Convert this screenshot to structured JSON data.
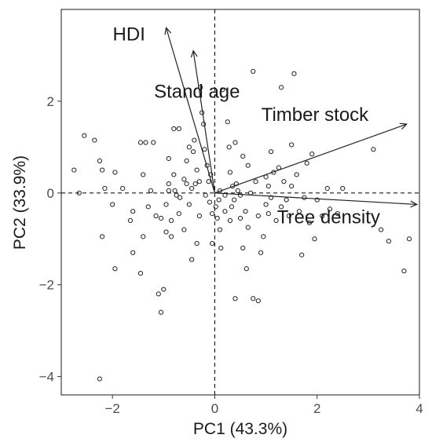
{
  "chart_data": {
    "type": "biplot",
    "xlabel": "PC1 (43.3%)",
    "ylabel": "PC2 (33.9%)",
    "xlim": [
      -3.0,
      4.0
    ],
    "ylim": [
      -4.4,
      4.0
    ],
    "xticks": [
      -2,
      0,
      2,
      4
    ],
    "yticks": [
      -4,
      -2,
      0,
      2
    ],
    "reference_lines": {
      "x": 0,
      "y": 0,
      "style": "dashed"
    },
    "grid": false,
    "loadings": [
      {
        "name": "HDI",
        "x": -0.95,
        "y": 3.6
      },
      {
        "name": "Stand age",
        "x": -0.42,
        "y": 3.1
      },
      {
        "name": "Timber stock",
        "x": 3.75,
        "y": 1.5
      },
      {
        "name": "Tree density",
        "x": 3.95,
        "y": -0.25
      }
    ],
    "points": [
      [
        -2.75,
        0.5
      ],
      [
        -2.65,
        0.0
      ],
      [
        -2.55,
        1.25
      ],
      [
        -2.35,
        1.15
      ],
      [
        -2.25,
        0.7
      ],
      [
        -2.2,
        0.5
      ],
      [
        -2.15,
        0.1
      ],
      [
        -2.2,
        -0.95
      ],
      [
        -2.25,
        -4.05
      ],
      [
        -2.0,
        -0.25
      ],
      [
        -1.95,
        0.45
      ],
      [
        -1.95,
        -1.65
      ],
      [
        -1.8,
        0.1
      ],
      [
        -1.65,
        -0.6
      ],
      [
        -1.6,
        -1.3
      ],
      [
        -1.6,
        -0.4
      ],
      [
        -1.45,
        1.1
      ],
      [
        -1.45,
        -1.75
      ],
      [
        -1.4,
        0.4
      ],
      [
        -1.4,
        -0.95
      ],
      [
        -1.35,
        1.1
      ],
      [
        -1.3,
        -0.3
      ],
      [
        -1.25,
        0.05
      ],
      [
        -1.2,
        1.1
      ],
      [
        -1.15,
        -0.5
      ],
      [
        -1.1,
        -2.2
      ],
      [
        -1.05,
        -0.55
      ],
      [
        -1.05,
        -2.6
      ],
      [
        -1.0,
        -2.1
      ],
      [
        -0.95,
        -0.85
      ],
      [
        -0.95,
        -0.25
      ],
      [
        -0.9,
        0.2
      ],
      [
        -0.9,
        0.05
      ],
      [
        -0.9,
        0.75
      ],
      [
        -0.85,
        -0.6
      ],
      [
        -0.85,
        -0.95
      ],
      [
        -0.8,
        1.4
      ],
      [
        -0.8,
        0.4
      ],
      [
        -0.78,
        0.05
      ],
      [
        -0.75,
        -0.05
      ],
      [
        -0.7,
        1.4
      ],
      [
        -0.7,
        -0.45
      ],
      [
        -0.68,
        -0.1
      ],
      [
        -0.6,
        0.3
      ],
      [
        -0.6,
        -0.8
      ],
      [
        -0.55,
        0.7
      ],
      [
        -0.55,
        0.2
      ],
      [
        -0.5,
        1.0
      ],
      [
        -0.5,
        -0.25
      ],
      [
        -0.45,
        0.1
      ],
      [
        -0.45,
        -1.45
      ],
      [
        -0.42,
        0.9
      ],
      [
        -0.4,
        1.15
      ],
      [
        -0.38,
        0.2
      ],
      [
        -0.35,
        -1.1
      ],
      [
        -0.35,
        0.5
      ],
      [
        -0.3,
        0.25
      ],
      [
        -0.3,
        -0.5
      ],
      [
        -0.28,
        2.3
      ],
      [
        -0.25,
        1.75
      ],
      [
        -0.22,
        1.5
      ],
      [
        -0.2,
        0.95
      ],
      [
        -0.18,
        -0.05
      ],
      [
        -0.15,
        0.6
      ],
      [
        -0.12,
        0.25
      ],
      [
        -0.1,
        -0.2
      ],
      [
        -0.08,
        0.4
      ],
      [
        -0.05,
        -0.45
      ],
      [
        -0.05,
        -1.1
      ],
      [
        0.02,
        -0.3
      ],
      [
        0.05,
        -0.55
      ],
      [
        0.08,
        -0.15
      ],
      [
        0.1,
        -0.8
      ],
      [
        0.1,
        0.05
      ],
      [
        0.12,
        -1.2
      ],
      [
        0.15,
        2.25
      ],
      [
        0.2,
        -0.4
      ],
      [
        0.2,
        -0.05
      ],
      [
        0.25,
        1.55
      ],
      [
        0.28,
        1.0
      ],
      [
        0.3,
        0.45
      ],
      [
        0.3,
        -0.6
      ],
      [
        0.33,
        -0.3
      ],
      [
        0.35,
        0.15
      ],
      [
        0.38,
        -0.15
      ],
      [
        0.4,
        -2.3
      ],
      [
        0.4,
        1.1
      ],
      [
        0.42,
        0.2
      ],
      [
        0.45,
        0.05
      ],
      [
        0.5,
        -0.05
      ],
      [
        0.5,
        -0.55
      ],
      [
        0.55,
        -1.2
      ],
      [
        0.55,
        0.8
      ],
      [
        0.6,
        -0.4
      ],
      [
        0.62,
        -1.65
      ],
      [
        0.65,
        0.6
      ],
      [
        0.65,
        -0.75
      ],
      [
        0.7,
        0.0
      ],
      [
        0.75,
        2.65
      ],
      [
        0.75,
        -2.3
      ],
      [
        0.8,
        0.25
      ],
      [
        0.85,
        -2.35
      ],
      [
        0.85,
        -0.5
      ],
      [
        0.9,
        -1.3
      ],
      [
        0.95,
        -0.95
      ],
      [
        1.0,
        -0.25
      ],
      [
        1.0,
        0.35
      ],
      [
        1.05,
        0.15
      ],
      [
        1.05,
        -0.45
      ],
      [
        1.1,
        0.9
      ],
      [
        1.1,
        -0.1
      ],
      [
        1.15,
        0.45
      ],
      [
        1.2,
        -0.6
      ],
      [
        1.25,
        0.55
      ],
      [
        1.3,
        2.3
      ],
      [
        1.3,
        -0.3
      ],
      [
        1.35,
        0.25
      ],
      [
        1.4,
        -0.15
      ],
      [
        1.45,
        -0.5
      ],
      [
        1.5,
        0.15
      ],
      [
        1.5,
        1.05
      ],
      [
        1.55,
        2.6
      ],
      [
        1.6,
        0.4
      ],
      [
        1.65,
        -0.4
      ],
      [
        1.7,
        -1.35
      ],
      [
        1.75,
        -0.1
      ],
      [
        1.8,
        0.65
      ],
      [
        1.85,
        -0.65
      ],
      [
        1.9,
        0.85
      ],
      [
        1.95,
        -1.0
      ],
      [
        2.0,
        -0.15
      ],
      [
        2.1,
        -0.5
      ],
      [
        2.2,
        0.1
      ],
      [
        2.25,
        -0.35
      ],
      [
        2.4,
        -0.45
      ],
      [
        2.5,
        0.1
      ],
      [
        3.1,
        0.95
      ],
      [
        3.25,
        -0.8
      ],
      [
        3.4,
        -1.05
      ],
      [
        3.7,
        -1.7
      ],
      [
        3.8,
        -1.0
      ]
    ]
  }
}
